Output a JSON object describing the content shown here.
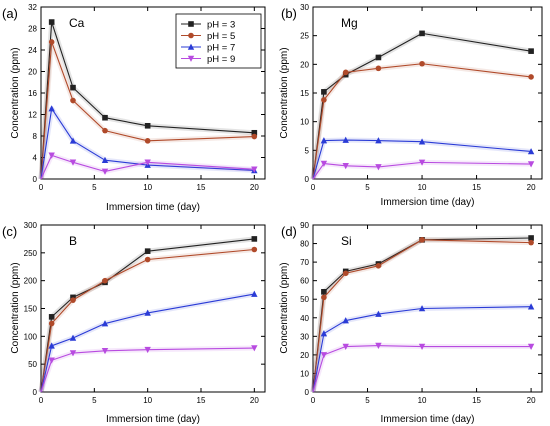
{
  "colors": {
    "pH3": "#222222",
    "pH5": "#b04a2a",
    "pH7": "#2a3bd6",
    "pH9": "#b84be0"
  },
  "legend": {
    "placement": "top-right of panel (a)",
    "entries": [
      {
        "label": "pH = 3",
        "marker": "square",
        "color": "#222222"
      },
      {
        "label": "pH = 5",
        "marker": "circle",
        "color": "#b04a2a"
      },
      {
        "label": "pH = 7",
        "marker": "triangle-up",
        "color": "#2a3bd6"
      },
      {
        "label": "pH = 9",
        "marker": "triangle-down",
        "color": "#b84be0"
      }
    ]
  },
  "chart_data": [
    {
      "type": "line",
      "panel_label": "(a)",
      "element": "Ca",
      "xlabel": "Immersion time (day)",
      "ylabel": "Concentration (ppm)",
      "xlim": [
        0,
        21
      ],
      "ylim": [
        0,
        32
      ],
      "xticks": [
        0,
        5,
        10,
        15,
        20
      ],
      "yticks": [
        0,
        4,
        8,
        12,
        16,
        20,
        24,
        28,
        32
      ],
      "x": [
        0,
        1,
        3,
        6,
        10,
        20
      ],
      "series": [
        {
          "name": "pH = 3",
          "values": [
            0,
            29.2,
            17.0,
            11.4,
            9.9,
            8.6
          ]
        },
        {
          "name": "pH = 5",
          "values": [
            0,
            25.5,
            14.6,
            9.0,
            7.1,
            7.9
          ]
        },
        {
          "name": "pH = 7",
          "values": [
            0,
            13.1,
            7.1,
            3.5,
            2.6,
            1.6
          ]
        },
        {
          "name": "pH = 9",
          "values": [
            0,
            4.4,
            3.1,
            1.4,
            3.1,
            1.8
          ]
        }
      ]
    },
    {
      "type": "line",
      "panel_label": "(b)",
      "element": "Mg",
      "xlabel": "Immersion time (day)",
      "ylabel": "Concentration (ppm)",
      "xlim": [
        0,
        21
      ],
      "ylim": [
        0,
        30
      ],
      "xticks": [
        0,
        5,
        10,
        15,
        20
      ],
      "yticks": [
        0,
        5,
        10,
        15,
        20,
        25,
        30
      ],
      "x": [
        0,
        1,
        3,
        6,
        10,
        20
      ],
      "series": [
        {
          "name": "pH = 3",
          "values": [
            0,
            15.2,
            18.2,
            21.2,
            25.4,
            22.3
          ]
        },
        {
          "name": "pH = 5",
          "values": [
            0,
            13.8,
            18.6,
            19.3,
            20.1,
            17.8
          ]
        },
        {
          "name": "pH = 7",
          "values": [
            0,
            6.7,
            6.8,
            6.7,
            6.5,
            4.8
          ]
        },
        {
          "name": "pH = 9",
          "values": [
            0,
            2.7,
            2.3,
            2.1,
            2.9,
            2.6
          ]
        }
      ]
    },
    {
      "type": "line",
      "panel_label": "(c)",
      "element": "B",
      "xlabel": "Immersion time (day)",
      "ylabel": "Concentration (ppm)",
      "xlim": [
        0,
        21
      ],
      "ylim": [
        0,
        300
      ],
      "xticks": [
        0,
        5,
        10,
        15,
        20
      ],
      "yticks": [
        0,
        50,
        100,
        150,
        200,
        250,
        300
      ],
      "x": [
        0,
        1,
        3,
        6,
        10,
        20
      ],
      "series": [
        {
          "name": "pH = 3",
          "values": [
            0,
            135,
            170,
            197,
            253,
            275
          ]
        },
        {
          "name": "pH = 5",
          "values": [
            0,
            123,
            165,
            200,
            238,
            256
          ]
        },
        {
          "name": "pH = 7",
          "values": [
            0,
            83,
            97,
            123,
            142,
            176
          ]
        },
        {
          "name": "pH = 9",
          "values": [
            0,
            57,
            70,
            74,
            76,
            79
          ]
        }
      ]
    },
    {
      "type": "line",
      "panel_label": "(d)",
      "element": "Si",
      "xlabel": "Immersion time (day)",
      "ylabel": "Concentration (ppm)",
      "xlim": [
        0,
        21
      ],
      "ylim": [
        0,
        90
      ],
      "xticks": [
        0,
        5,
        10,
        15,
        20
      ],
      "yticks": [
        0,
        10,
        20,
        30,
        40,
        50,
        60,
        70,
        80,
        90
      ],
      "x": [
        0,
        1,
        3,
        6,
        10,
        20
      ],
      "series": [
        {
          "name": "pH = 3",
          "values": [
            0,
            54,
            65,
            69,
            82,
            83
          ]
        },
        {
          "name": "pH = 5",
          "values": [
            0,
            51,
            64,
            68,
            82,
            80.5
          ]
        },
        {
          "name": "pH = 7",
          "values": [
            0,
            31.5,
            38.5,
            42,
            45,
            46
          ]
        },
        {
          "name": "pH = 9",
          "values": [
            0,
            20,
            24.5,
            25,
            24.5,
            24.5
          ]
        }
      ]
    }
  ]
}
